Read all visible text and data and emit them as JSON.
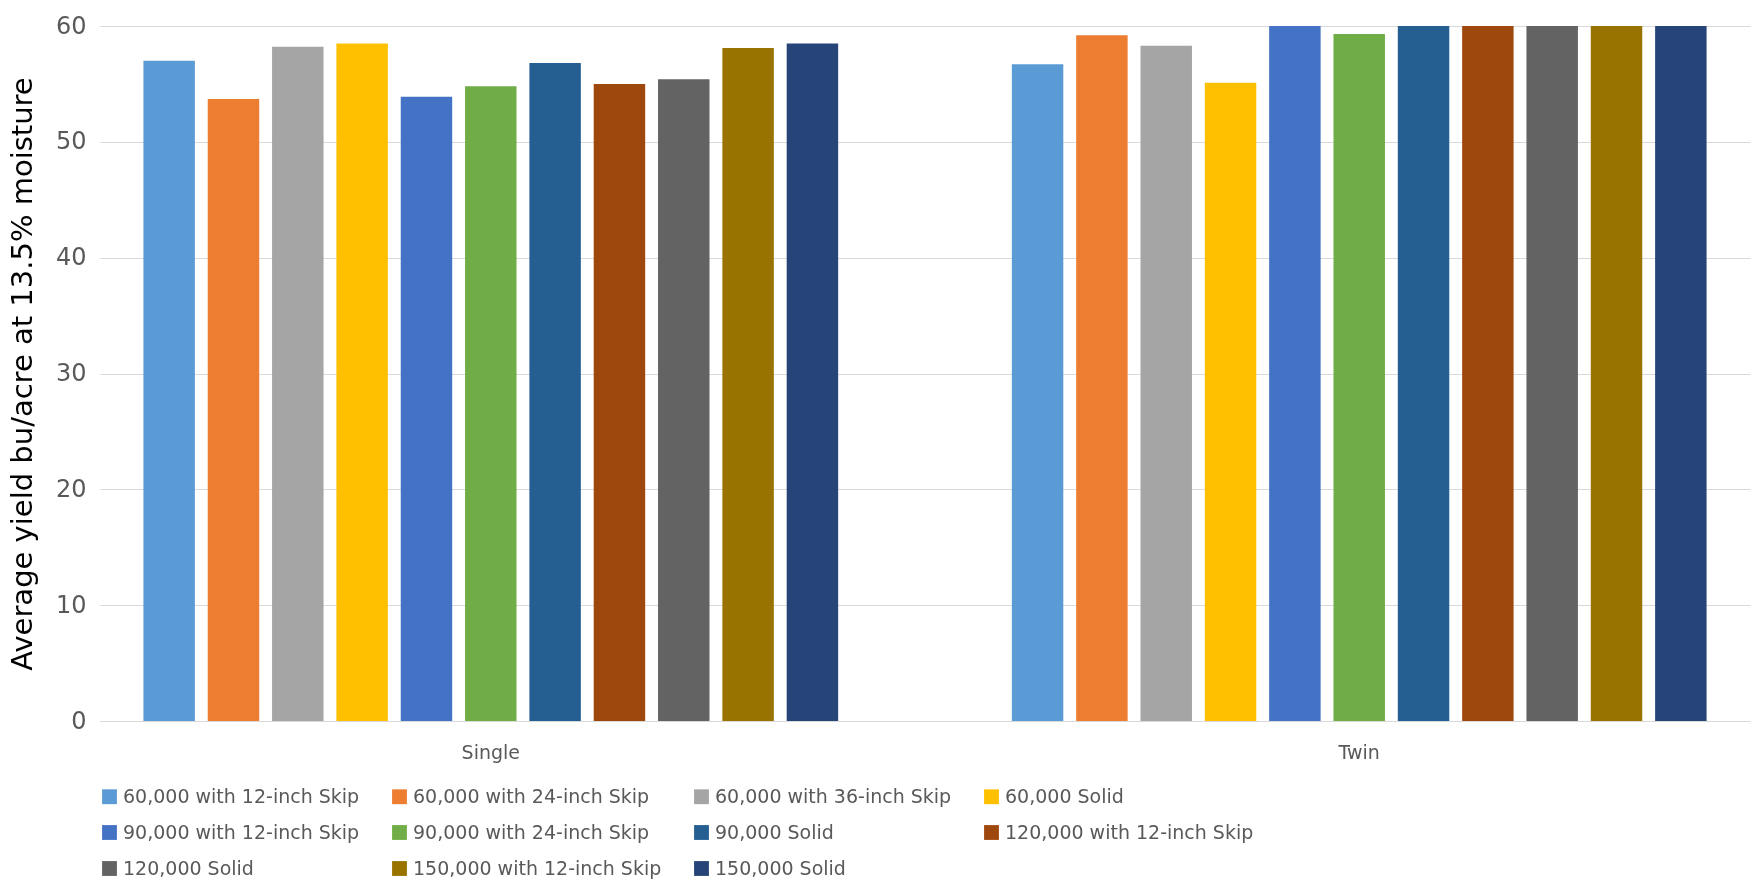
{
  "chart_data": {
    "type": "bar",
    "ylabel": "Average yield bu/acre at 13.5% moisture",
    "categories": [
      "Single",
      "Twin"
    ],
    "series": [
      {
        "name": "60,000 with 12-inch Skip",
        "color": "#5b9bd5",
        "values": [
          57.0,
          56.7
        ]
      },
      {
        "name": "60,000 with 24-inch Skip",
        "color": "#ed7d31",
        "values": [
          53.7,
          59.2
        ]
      },
      {
        "name": "60,000 with 36-inch Skip",
        "color": "#a5a5a5",
        "values": [
          58.2,
          58.3
        ]
      },
      {
        "name": "60,000 Solid",
        "color": "#ffc000",
        "values": [
          58.5,
          55.1
        ]
      },
      {
        "name": "90,000 with 12-inch Skip",
        "color": "#4472c4",
        "values": [
          53.9,
          60
        ]
      },
      {
        "name": "90,000 with 24-inch Skip",
        "color": "#70ad47",
        "values": [
          54.8,
          59.3
        ]
      },
      {
        "name": "90,000 Solid",
        "color": "#255e91",
        "values": [
          56.8,
          60
        ]
      },
      {
        "name": "120,000 with 12-inch Skip",
        "color": "#9e480e",
        "values": [
          55.0,
          60
        ]
      },
      {
        "name": "120,000 Solid",
        "color": "#636363",
        "values": [
          55.4,
          60
        ]
      },
      {
        "name": "150,000 with 12-inch Skip",
        "color": "#997300",
        "values": [
          58.1,
          60
        ]
      },
      {
        "name": "150,000 Solid",
        "color": "#264478",
        "values": [
          58.5,
          60
        ]
      }
    ],
    "ylim": [
      0,
      60
    ],
    "yticks": [
      0,
      10,
      20,
      30,
      40,
      50,
      60
    ],
    "grid": "y",
    "legend": "bottom"
  }
}
